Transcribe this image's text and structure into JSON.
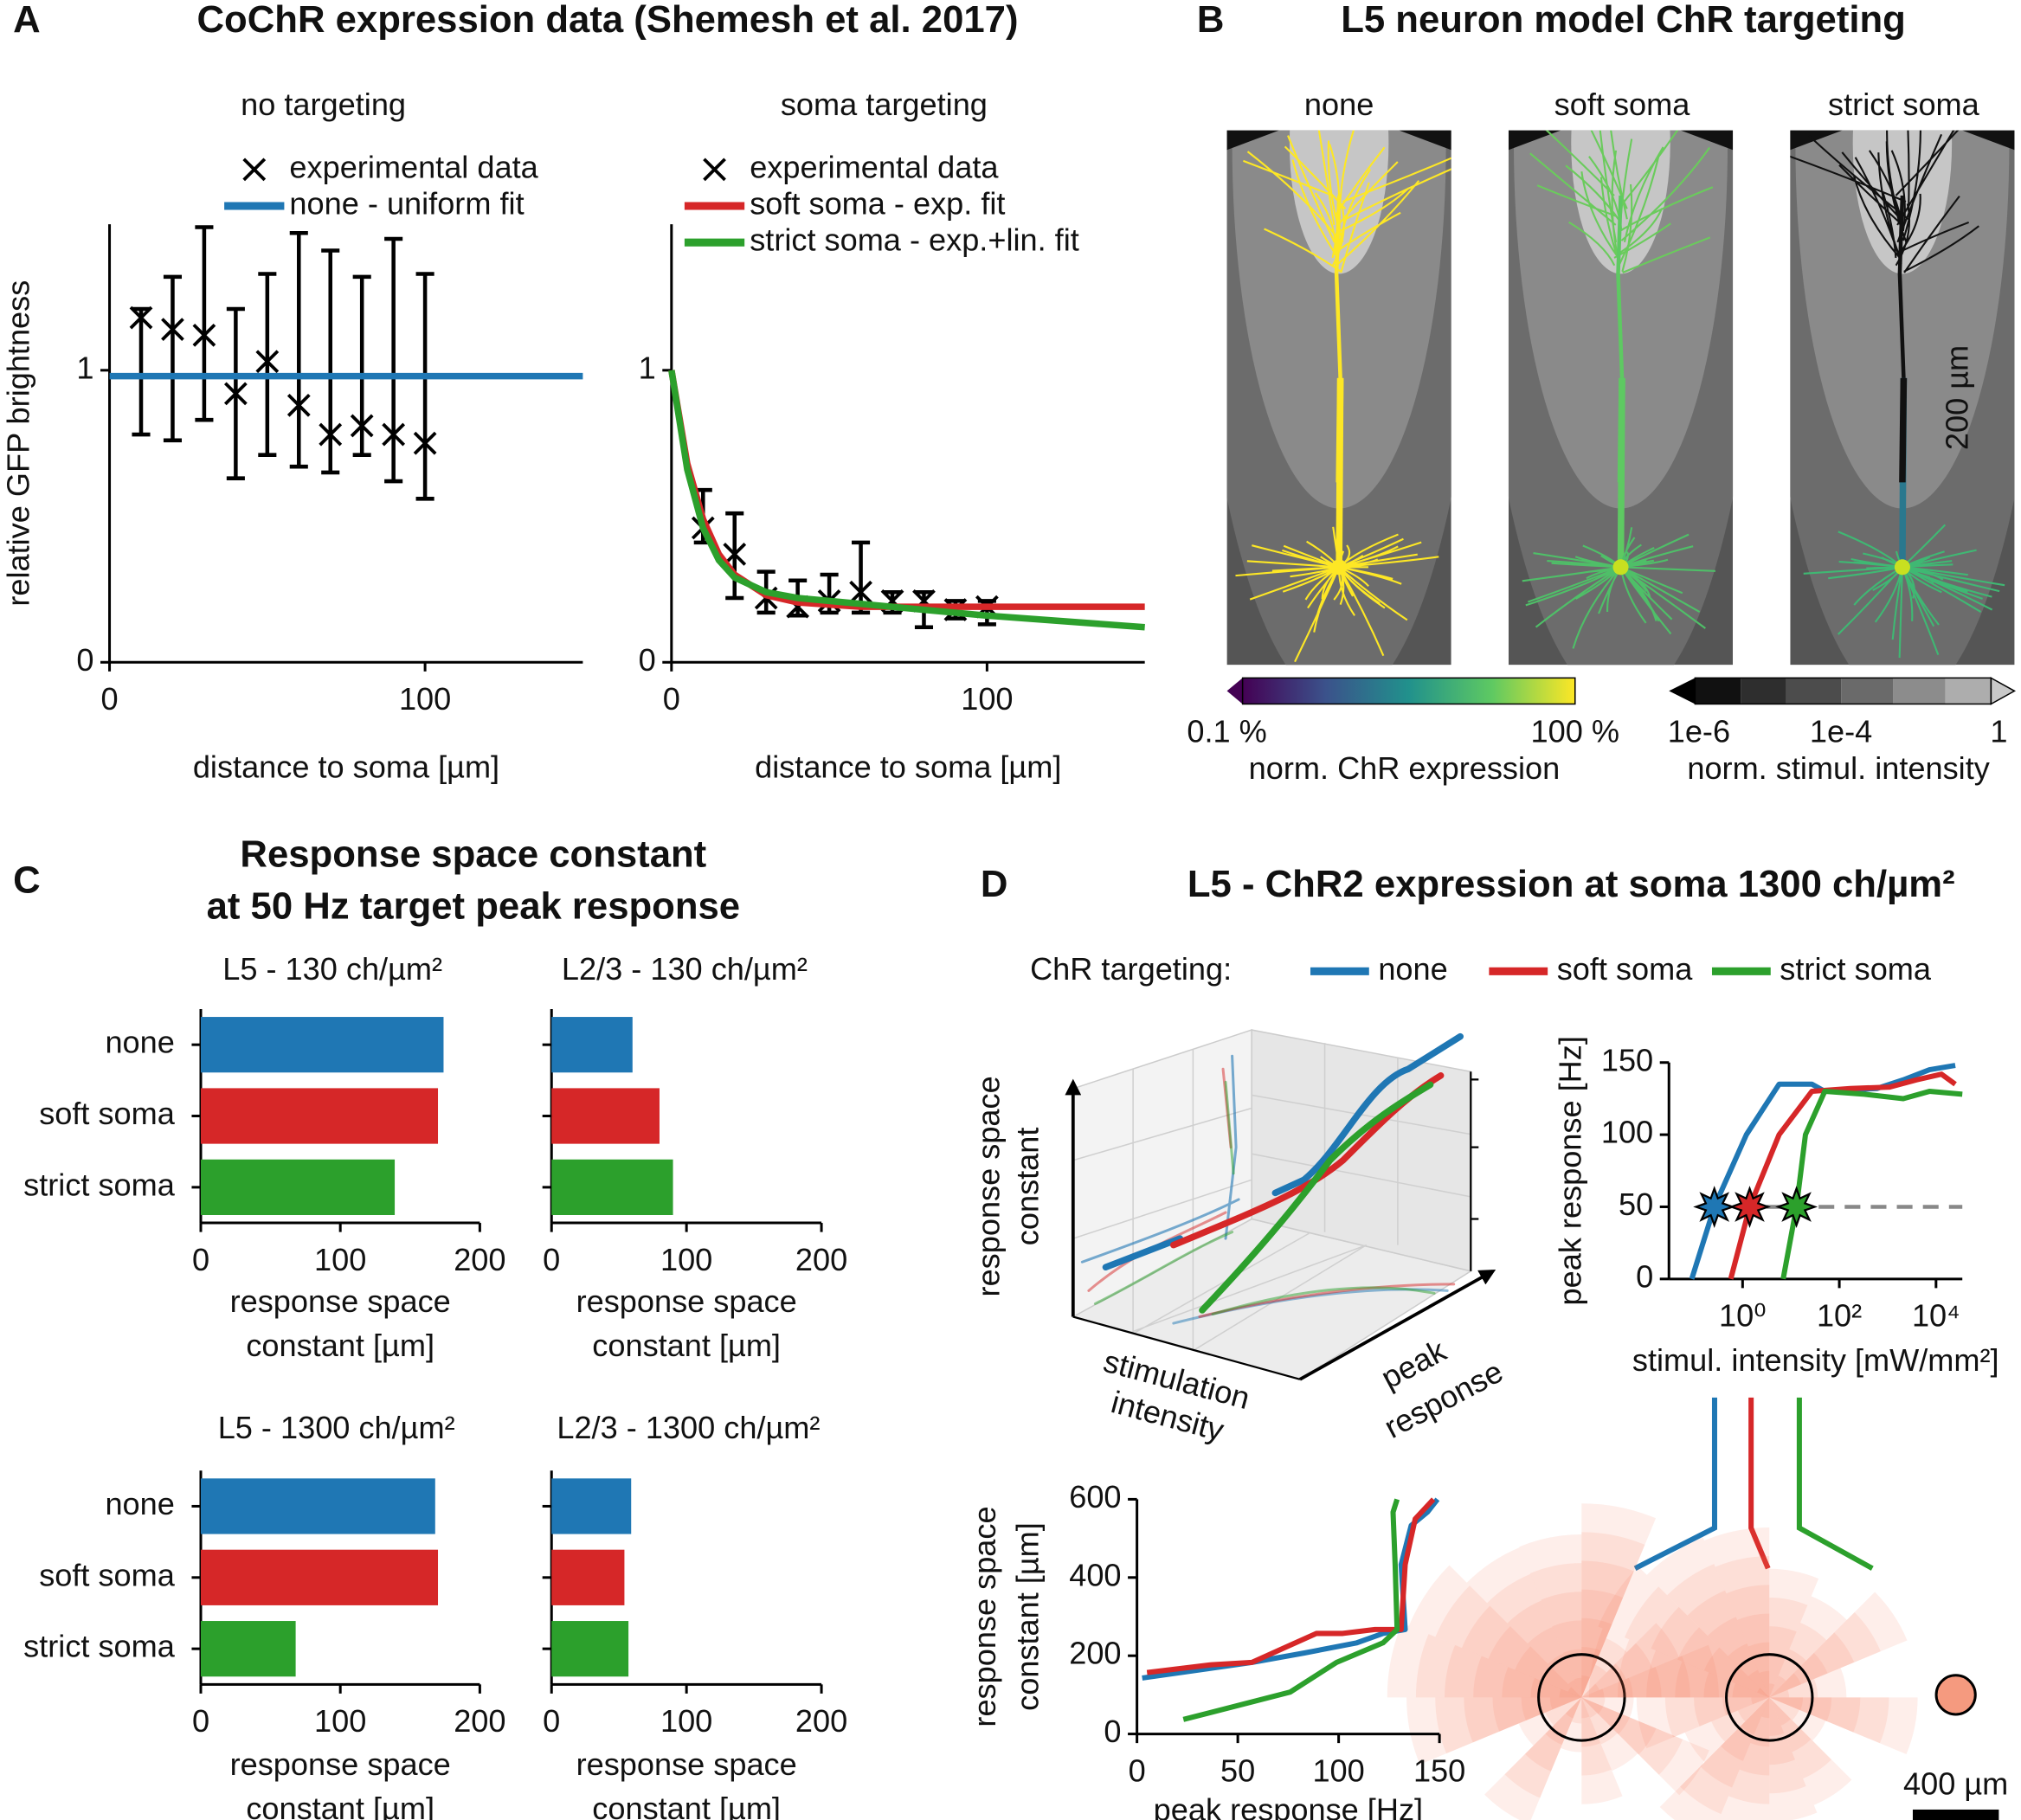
{
  "panels": [
    {
      "letter": "A",
      "title": "CoChR expression data (Shemesh et al. 2017)"
    },
    {
      "letter": "B",
      "title": "L5 neuron model ChR targeting"
    },
    {
      "letter": "C",
      "title": [
        "Response space constant",
        "at 50 Hz target peak response"
      ]
    },
    {
      "letter": "D",
      "title": "L5 - ChR2 expression at soma 1300 ch/µm²"
    }
  ],
  "panel_b": {
    "subtitles": [
      "none",
      "soft soma",
      "strict soma"
    ],
    "scale_bar": "200 µm",
    "colorbars": [
      {
        "ticks": [
          "0.1 %",
          "100 %"
        ],
        "label": "norm. ChR expression"
      },
      {
        "ticks": [
          "1e-6",
          "1e-4",
          "1"
        ],
        "label": "norm. stimul. intensity"
      }
    ]
  },
  "panel_d": {
    "legend_title": "ChR targeting:",
    "axes_3d": {
      "z_label": [
        "response space",
        "constant"
      ],
      "x_label": [
        "stimulation",
        "intensity"
      ],
      "y_label": [
        "peak",
        "response"
      ]
    },
    "scale_bar": "400 µm"
  },
  "chart_data": [
    {
      "type": "errorbar",
      "title": "no targeting",
      "xlabel": "distance to soma [µm]",
      "ylabel": "relative GFP brightness",
      "xlim": [
        0,
        150
      ],
      "ylim": [
        0,
        1.5
      ],
      "xticks": [
        0,
        100
      ],
      "yticks": [
        0,
        1
      ],
      "series": [
        {
          "name": "experimental data",
          "marker": "x",
          "color": "#000000",
          "x": [
            10,
            20,
            30,
            40,
            50,
            60,
            70,
            80,
            90,
            100
          ],
          "values": [
            1.18,
            1.14,
            1.12,
            0.92,
            1.03,
            0.88,
            0.78,
            0.81,
            0.78,
            0.75
          ],
          "lower": [
            0.78,
            0.76,
            0.83,
            0.63,
            0.71,
            0.67,
            0.65,
            0.71,
            0.62,
            0.56
          ],
          "upper": [
            1.21,
            1.32,
            1.49,
            1.21,
            1.33,
            1.47,
            1.41,
            1.32,
            1.45,
            1.33
          ]
        },
        {
          "name": "none - uniform fit",
          "color": "#1f77b4",
          "x": [
            0,
            150
          ],
          "values": [
            0.98,
            0.98
          ]
        }
      ]
    },
    {
      "type": "errorbar",
      "title": "soma targeting",
      "xlabel": "distance to soma [µm]",
      "xlim": [
        0,
        150
      ],
      "ylim": [
        0,
        1.5
      ],
      "xticks": [
        0,
        100
      ],
      "yticks": [
        0,
        1
      ],
      "series": [
        {
          "name": "experimental data",
          "marker": "x",
          "color": "#000000",
          "x": [
            10,
            20,
            30,
            40,
            50,
            60,
            70,
            80,
            90,
            100
          ],
          "values": [
            0.46,
            0.37,
            0.22,
            0.19,
            0.21,
            0.24,
            0.21,
            0.21,
            0.18,
            0.19
          ],
          "lower": [
            0.41,
            0.22,
            0.17,
            0.16,
            0.17,
            0.17,
            0.17,
            0.12,
            0.15,
            0.13
          ],
          "upper": [
            0.59,
            0.51,
            0.31,
            0.28,
            0.3,
            0.41,
            0.24,
            0.24,
            0.21,
            0.21
          ]
        },
        {
          "name": "soft soma - exp. fit",
          "color": "#d62728",
          "x": [
            0,
            5,
            10,
            15,
            20,
            30,
            40,
            60,
            80,
            100,
            150
          ],
          "values": [
            1.0,
            0.68,
            0.49,
            0.37,
            0.3,
            0.23,
            0.205,
            0.19,
            0.19,
            0.19,
            0.19
          ]
        },
        {
          "name": "strict soma - exp.+lin. fit",
          "color": "#2ca02c",
          "x": [
            0,
            5,
            10,
            15,
            20,
            30,
            40,
            60,
            80,
            100,
            150
          ],
          "values": [
            1.0,
            0.66,
            0.46,
            0.35,
            0.29,
            0.24,
            0.22,
            0.2,
            0.18,
            0.16,
            0.12
          ]
        }
      ]
    },
    {
      "type": "barh",
      "title": "L5 - 130 ch/µm²",
      "xlabel": [
        "response space",
        "constant [µm]"
      ],
      "xlim": [
        0,
        200
      ],
      "xticks": [
        0,
        100,
        200
      ],
      "categories": [
        "none",
        "soft soma",
        "strict soma"
      ],
      "values": [
        174,
        170,
        139
      ],
      "colors": [
        "#1f77b4",
        "#d62728",
        "#2ca02c"
      ]
    },
    {
      "type": "barh",
      "title": "L2/3 - 130 ch/µm²",
      "xlabel": [
        "response space",
        "constant [µm]"
      ],
      "xlim": [
        0,
        200
      ],
      "xticks": [
        0,
        100,
        200
      ],
      "categories": [
        null,
        null,
        null
      ],
      "values": [
        60,
        80,
        90
      ],
      "colors": [
        "#1f77b4",
        "#d62728",
        "#2ca02c"
      ]
    },
    {
      "type": "barh",
      "title": "L5 - 1300 ch/µm²",
      "xlabel": [
        "response space",
        "constant [µm]"
      ],
      "xlim": [
        0,
        200
      ],
      "xticks": [
        0,
        100,
        200
      ],
      "categories": [
        "none",
        "soft soma",
        "strict soma"
      ],
      "values": [
        168,
        170,
        68
      ],
      "colors": [
        "#1f77b4",
        "#d62728",
        "#2ca02c"
      ]
    },
    {
      "type": "barh",
      "title": "L2/3 - 1300 ch/µm²",
      "xlabel": [
        "response space",
        "constant [µm]"
      ],
      "xlim": [
        0,
        200
      ],
      "xticks": [
        0,
        100,
        200
      ],
      "categories": [
        null,
        null,
        null
      ],
      "values": [
        59,
        54,
        57
      ],
      "colors": [
        "#1f77b4",
        "#d62728",
        "#2ca02c"
      ]
    },
    {
      "type": "line",
      "xscale": "log",
      "xlabel": "stimul. intensity [mW/mm²]",
      "ylabel": "peak response [Hz]",
      "xlim": [
        0.03,
        35000
      ],
      "ylim": [
        0,
        150
      ],
      "xticks": [
        {
          "value": 1,
          "label": "10⁰"
        },
        {
          "value": 100,
          "label": "10²"
        },
        {
          "value": 10000,
          "label": "10⁴"
        }
      ],
      "yticks": [
        0,
        50,
        100,
        150
      ],
      "reference_line": 50,
      "series": [
        {
          "name": "none",
          "color": "#1f77b4",
          "x": [
            0.089,
            0.26,
            1.2,
            5.7,
            27,
            50,
            600,
            2100,
            7300,
            25000
          ],
          "values": [
            0,
            50,
            100,
            135,
            135,
            130,
            132,
            138,
            145,
            148
          ]
        },
        {
          "name": "soft soma",
          "color": "#d62728",
          "x": [
            0.57,
            1.4,
            5.7,
            27,
            170,
            1100,
            3900,
            13000,
            25000
          ],
          "values": [
            0,
            50,
            100,
            130,
            132,
            133,
            138,
            142,
            135
          ]
        },
        {
          "name": "strict soma",
          "color": "#2ca02c",
          "x": [
            6.9,
            13,
            20,
            50,
            330,
            2100,
            7300,
            35000
          ],
          "values": [
            0,
            50,
            100,
            130,
            128,
            125,
            130,
            128
          ]
        }
      ]
    },
    {
      "type": "line",
      "xlabel": "peak response [Hz]",
      "ylabel": [
        "response space",
        "constant [µm]"
      ],
      "xlim": [
        0,
        150
      ],
      "ylim": [
        0,
        600
      ],
      "xticks": [
        0,
        50,
        100,
        150
      ],
      "yticks": [
        0,
        200,
        400,
        600
      ],
      "series": [
        {
          "name": "none",
          "color": "#1f77b4",
          "x": [
            2.6,
            57,
            83,
            109,
            122,
            133,
            131,
            136,
            144,
            149
          ],
          "values": [
            143,
            183,
            207,
            233,
            257,
            267,
            433,
            533,
            567,
            600
          ]
        },
        {
          "name": "soft soma",
          "color": "#d62728",
          "x": [
            5,
            37,
            57,
            76,
            89,
            102,
            118,
            131,
            133,
            138,
            147
          ],
          "values": [
            157,
            177,
            183,
            227,
            257,
            257,
            267,
            267,
            433,
            550,
            600
          ]
        },
        {
          "name": "strict soma",
          "color": "#2ca02c",
          "x": [
            23,
            76,
            99,
            122,
            129,
            128,
            127,
            129
          ],
          "values": [
            37,
            107,
            183,
            233,
            267,
            433,
            567,
            600
          ]
        }
      ]
    }
  ]
}
